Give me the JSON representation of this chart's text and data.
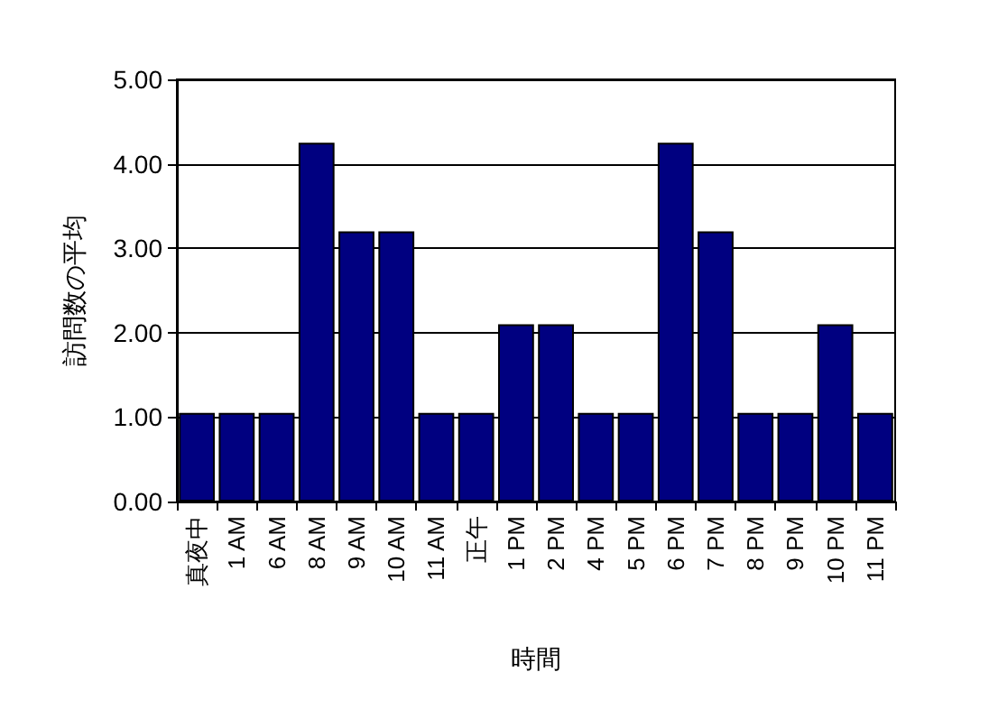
{
  "chart_data": {
    "type": "bar",
    "xlabel": "時間",
    "ylabel": "訪問数の平均",
    "categories": [
      "真夜中",
      "1 AM",
      "6 AM",
      "8 AM",
      "9 AM",
      "10 AM",
      "11 AM",
      "正午",
      "1 PM",
      "2 PM",
      "4 PM",
      "5 PM",
      "6 PM",
      "7 PM",
      "8 PM",
      "9 PM",
      "10 PM",
      "11 PM"
    ],
    "values": [
      1.05,
      1.05,
      1.05,
      4.25,
      3.2,
      3.2,
      1.05,
      1.05,
      2.1,
      2.1,
      1.05,
      1.05,
      4.25,
      3.2,
      1.05,
      1.05,
      2.1,
      1.05
    ],
    "color": "#000080",
    "ylim": [
      0,
      5
    ],
    "yticks": [
      {
        "value": 0,
        "label": "0.00"
      },
      {
        "value": 1,
        "label": "1.00"
      },
      {
        "value": 2,
        "label": "2.00"
      },
      {
        "value": 3,
        "label": "3.00"
      },
      {
        "value": 4,
        "label": "4.00"
      },
      {
        "value": 5,
        "label": "5.00"
      }
    ],
    "grid": "y"
  }
}
